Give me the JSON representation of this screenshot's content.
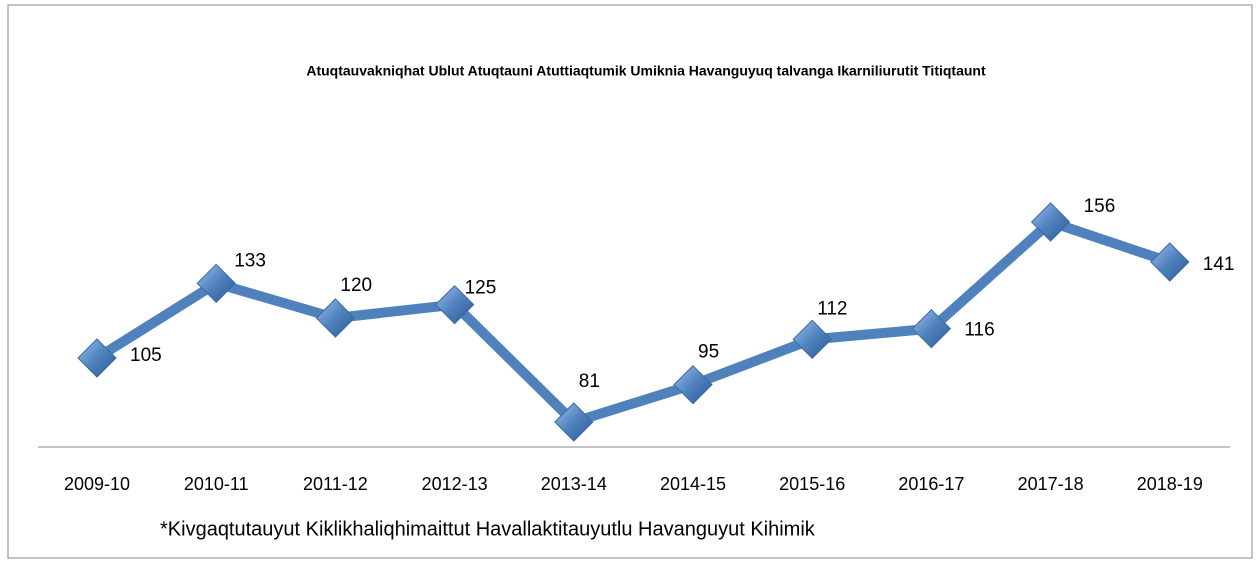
{
  "chart_data": {
    "type": "line",
    "title": "Atuqtauvakniqhat Ublut Atuqtauni Atuttiaqtumik Umiknia Havanguyuq talvanga Ikarniliurutit Titiqtaunt",
    "categories": [
      "2009-10",
      "2010-11",
      "2011-12",
      "2012-13",
      "2013-14",
      "2014-15",
      "2015-16",
      "2016-17",
      "2017-18",
      "2018-19"
    ],
    "series": [
      {
        "color": "#4f81bd",
        "values": [
          105,
          133,
          120,
          125,
          81,
          95,
          112,
          116,
          156,
          141
        ]
      }
    ],
    "footnote": "*Kivgaqtutauyut Kiklikhaliqhimaittut Havallaktitauyutlu Havanguyut Kihimik"
  }
}
